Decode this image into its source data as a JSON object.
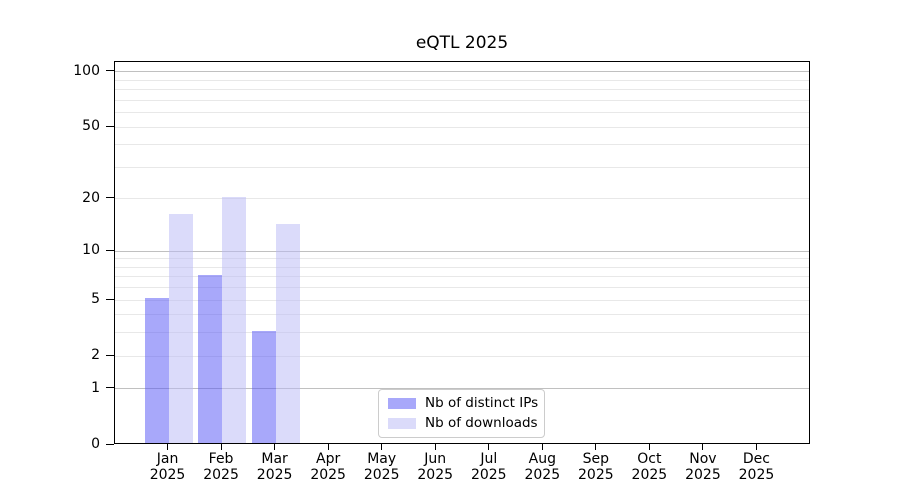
{
  "title": "eQTL 2025",
  "chart_data": {
    "type": "bar",
    "title": "eQTL 2025",
    "x_categories": [
      "Jan",
      "Feb",
      "Mar",
      "Apr",
      "May",
      "Jun",
      "Jul",
      "Aug",
      "Sep",
      "Oct",
      "Nov",
      "Dec"
    ],
    "x_year": "2025",
    "series": [
      {
        "name": "Nb of distinct IPs",
        "color": "#5151f5",
        "opacity": 0.5,
        "apparent_color": "#a8a8fa",
        "values": [
          5,
          7,
          3,
          0,
          0,
          0,
          0,
          0,
          0,
          0,
          0,
          0
        ]
      },
      {
        "name": "Nb of downloads",
        "color": "#b7b7f5",
        "opacity": 0.5,
        "apparent_color": "#dbdbfa",
        "values": [
          16,
          20,
          14,
          0,
          0,
          0,
          0,
          0,
          0,
          0,
          0,
          0
        ]
      }
    ],
    "y_scale": "log1p",
    "ylim": [
      0,
      113
    ],
    "y_tick_labels": [
      0,
      1,
      2,
      5,
      10,
      20,
      50,
      100
    ],
    "y_major_gridlines": [
      1,
      10,
      100
    ],
    "y_minor_gridlines": [
      2,
      3,
      4,
      5,
      6,
      7,
      8,
      9,
      20,
      30,
      40,
      50,
      60,
      70,
      80,
      90
    ],
    "grid": true,
    "legend_position": "lower center",
    "colors": {
      "major_grid": "#c0c0c0",
      "minor_grid": "#e8e8e8",
      "axis": "#000000",
      "text": "#000000",
      "background": "#ffffff"
    }
  }
}
